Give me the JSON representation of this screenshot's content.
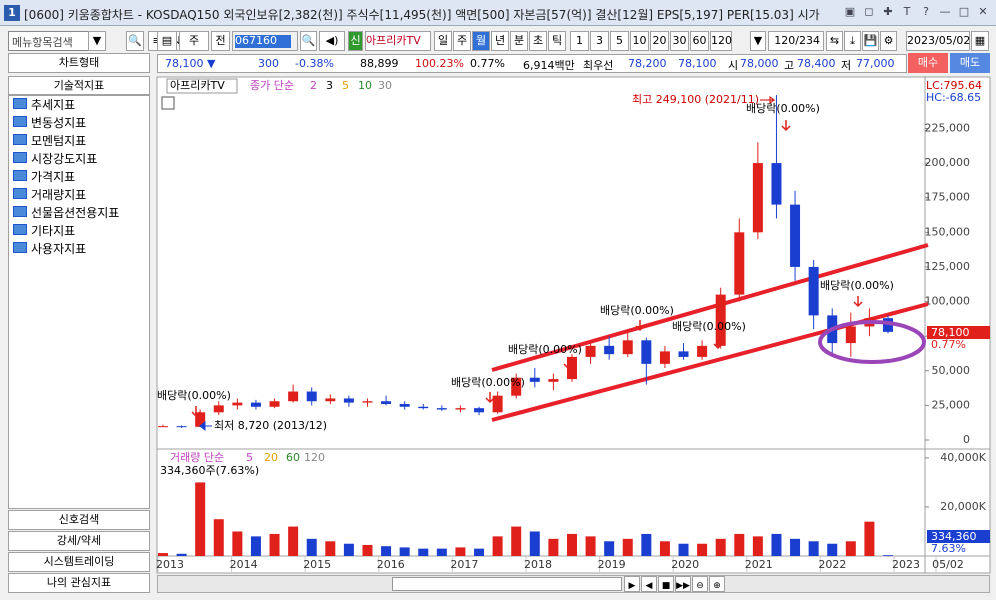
{
  "window": {
    "number": "1",
    "title": "[0600] 키움종합차트 - KOSDAQ150 외국인보유[2,382(천)] 주식수[11,495(천)] 액면[500] 자본금[57(억)] 결산[12월] EPS[5,197] PER[15.03] 시가"
  },
  "sidebar": {
    "search": "메뉴항목검색",
    "chart_type": "차트형태",
    "indicators": "기술적지표",
    "tree": [
      "추세지표",
      "변동성지표",
      "모멘텀지표",
      "시장강도지표",
      "가격지표",
      "거래량지표",
      "선물옵션전용지표",
      "기타지표",
      "사용자지표"
    ],
    "buttons": [
      "신호검색",
      "강세/약세",
      "시스템트레이딩",
      "나의 관심지표"
    ]
  },
  "toolbar": {
    "period": "주",
    "prev": "전",
    "code": "067160",
    "credit": "신",
    "name": "아프리카TV",
    "units": [
      "일",
      "주",
      "월",
      "년",
      "분",
      "초",
      "틱"
    ],
    "counts": [
      "1",
      "3",
      "5",
      "10",
      "20",
      "30",
      "60",
      "120"
    ],
    "counter": "120/234",
    "date": "2023/05/02",
    "buy": "매수",
    "sell": "매도"
  },
  "quote": [
    {
      "text": "78,100 ▼",
      "color": "#1a3fd0"
    },
    {
      "text": "300",
      "color": "#1a3fd0"
    },
    {
      "text": "-0.38%",
      "color": "#1a3fd0"
    },
    {
      "text": "88,899",
      "color": "#000000"
    },
    {
      "text": "100.23%",
      "color": "#d01010"
    },
    {
      "text": "0.77%",
      "color": "#000000"
    },
    {
      "text": "6,914백만",
      "color": "#000000"
    },
    {
      "text": "최우선",
      "color": "#000000"
    },
    {
      "text": "78,200",
      "color": "#1a3fd0"
    },
    {
      "text": "78,100",
      "color": "#1a3fd0"
    },
    {
      "text": "시",
      "color": "#000000"
    },
    {
      "text": "78,000",
      "color": "#1a3fd0"
    },
    {
      "text": "고",
      "color": "#000000"
    },
    {
      "text": "78,400",
      "color": "#1a3fd0"
    },
    {
      "text": "저",
      "color": "#000000"
    },
    {
      "text": "77,000",
      "color": "#1a3fd0"
    }
  ],
  "chart_data": [
    {
      "type": "candlestick",
      "title": "아프리카TV",
      "legend": "종가 단순",
      "ma_periods": [
        2,
        3,
        5,
        10,
        30
      ],
      "ma_colors": [
        "#c040c0",
        "#000000",
        "#e0a000",
        "#2a8a2a",
        "#888888"
      ],
      "lc": "LC:795.64",
      "hc": "HC:-68.65",
      "up_color": "#e0201b",
      "down_color": "#1a3fd0",
      "open": [
        10000,
        10000,
        9500,
        20000,
        25000,
        27000,
        24000,
        28000,
        35000,
        28000,
        30000,
        27000,
        28000,
        26000,
        24000,
        23000,
        22000,
        23000,
        20000,
        32000,
        45000,
        42000,
        44000,
        60000,
        68000,
        62000,
        72000,
        55000,
        64000,
        60000,
        68000,
        105000,
        150000,
        200000,
        170000,
        125000,
        90000,
        70000,
        82000,
        88000
      ],
      "high": [
        11000,
        10500,
        22000,
        28000,
        30000,
        29000,
        30000,
        40000,
        38000,
        33000,
        32000,
        30000,
        32000,
        28000,
        26000,
        25000,
        25000,
        24000,
        35000,
        48000,
        52000,
        48000,
        62000,
        72000,
        75000,
        80000,
        74000,
        68000,
        70000,
        72000,
        110000,
        160000,
        215000,
        249100,
        180000,
        130000,
        95000,
        92000,
        95000,
        90000
      ],
      "low": [
        9500,
        8720,
        9300,
        18000,
        22000,
        22000,
        23000,
        27000,
        25000,
        26000,
        24000,
        24000,
        25000,
        22000,
        22000,
        21000,
        20000,
        18000,
        19000,
        30000,
        38000,
        36000,
        42000,
        55000,
        58000,
        60000,
        40000,
        52000,
        58000,
        58000,
        66000,
        100000,
        145000,
        160000,
        115000,
        80000,
        62000,
        60000,
        75000,
        77000
      ],
      "close": [
        10000,
        9500,
        20000,
        25000,
        27000,
        24000,
        28000,
        35000,
        28000,
        30000,
        27000,
        28000,
        26000,
        24000,
        23000,
        22000,
        23000,
        20000,
        32000,
        45000,
        42000,
        44000,
        60000,
        68000,
        62000,
        72000,
        55000,
        64000,
        60000,
        68000,
        105000,
        150000,
        200000,
        170000,
        125000,
        90000,
        70000,
        82000,
        88000,
        78100
      ],
      "ylim": [
        0,
        260000
      ],
      "yticks": [
        0,
        {
          "value": 25000,
          "label": "25,000"
        },
        {
          "value": 50000,
          "label": "50,000"
        },
        {
          "value": 75000,
          "label": "75,000"
        },
        {
          "value": 100000,
          "label": "100,000"
        },
        {
          "value": 125000,
          "label": "125,000"
        },
        {
          "value": 150000,
          "label": "150,000"
        },
        {
          "value": 175000,
          "label": "175,000"
        },
        {
          "value": 200000,
          "label": "200,000"
        },
        {
          "value": 225000,
          "label": "225,000"
        }
      ],
      "last_label": "78,100",
      "last_change": "0.77%",
      "annotations": [
        "최고 249,100 (2021/11)",
        "최저 8,720 (2013/12)",
        "배당락(0.00%)",
        "배당락(0.00%)",
        "배당락(0.00%)",
        "배당락(0.00%)",
        "배당락(0.00%)",
        "배당락(0.00%)",
        "배당락(0.00%)"
      ],
      "x_labels": [
        "2013",
        "2014",
        "2015",
        "2016",
        "2017",
        "2018",
        "2019",
        "2020",
        "2021",
        "2022",
        "2023",
        "05/02"
      ]
    },
    {
      "type": "bar",
      "legend": "거래량 단순",
      "ma_periods": [
        5,
        20,
        60,
        120
      ],
      "ma_colors": [
        "#c040c0",
        "#e0a000",
        "#2a8a2a",
        "#888888"
      ],
      "caption": "334,360주(7.63%)",
      "values": [
        1200,
        900,
        30000,
        15000,
        10000,
        8000,
        9000,
        12000,
        7000,
        6000,
        5000,
        4500,
        4000,
        3500,
        3000,
        3000,
        3500,
        3000,
        8000,
        12000,
        10000,
        7000,
        9000,
        8000,
        6000,
        7000,
        9000,
        6000,
        5000,
        5000,
        7000,
        9000,
        8000,
        9000,
        7000,
        6000,
        5000,
        6000,
        14000,
        334.36
      ],
      "last_value_label": "334,360",
      "last_pct": "7.63%",
      "ylim": [
        0,
        42400
      ],
      "yticks": [
        {
          "value": 20000,
          "label": "20,000K"
        },
        {
          "value": 40000,
          "label": "40,000K"
        }
      ]
    }
  ]
}
